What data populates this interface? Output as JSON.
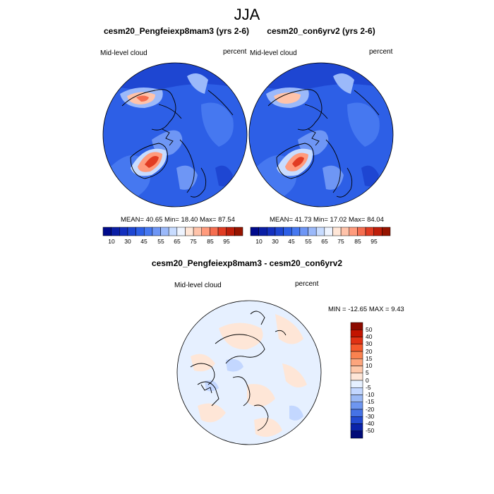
{
  "title": "JJA",
  "panels": [
    {
      "title": "cesm20_Pengfeiexp8mam3 (yrs 2-6)",
      "left_label": "Mid-level cloud",
      "right_label": "percent",
      "stats": "MEAN=  40.65  Min=  18.40  Max=  87.54"
    },
    {
      "title": "cesm20_con6yrv2 (yrs 2-6)",
      "left_label": "Mid-level cloud",
      "right_label": "percent",
      "stats": "MEAN=  41.73  Min=  17.02  Max=  84.04"
    }
  ],
  "abs_colorbar": {
    "ticks": [
      "10",
      "30",
      "45",
      "55",
      "65",
      "75",
      "85",
      "95"
    ],
    "colors": [
      "#000a8c",
      "#0a1ea5",
      "#1430be",
      "#1e46d2",
      "#2d5fe6",
      "#4678f0",
      "#6e96f5",
      "#9bb9fa",
      "#c8dcff",
      "#eef4ff",
      "#ffe6d7",
      "#ffc3aa",
      "#ff9b7d",
      "#f56e50",
      "#e13c23",
      "#be1e0a",
      "#961400"
    ]
  },
  "diff_panel": {
    "title": "cesm20_Pengfeiexp8mam3 - cesm20_con6yrv2",
    "left_label": "Mid-level cloud",
    "right_label": "percent",
    "stats": "MIN = -12.65 MAX =   9.43"
  },
  "diff_colorbar": {
    "labels": [
      "50",
      "40",
      "30",
      "20",
      "15",
      "10",
      "5",
      "0",
      "-5",
      "-10",
      "-15",
      "-20",
      "-30",
      "-40",
      "-50"
    ],
    "colors": [
      "#8c0a00",
      "#c31400",
      "#e13214",
      "#f55a2d",
      "#fa8250",
      "#fda57d",
      "#fec8aa",
      "#fee6d7",
      "#e6f0ff",
      "#c3d7ff",
      "#9bb9f5",
      "#6e96f0",
      "#4673e6",
      "#234bd2",
      "#0a23aa",
      "#000a78"
    ]
  }
}
